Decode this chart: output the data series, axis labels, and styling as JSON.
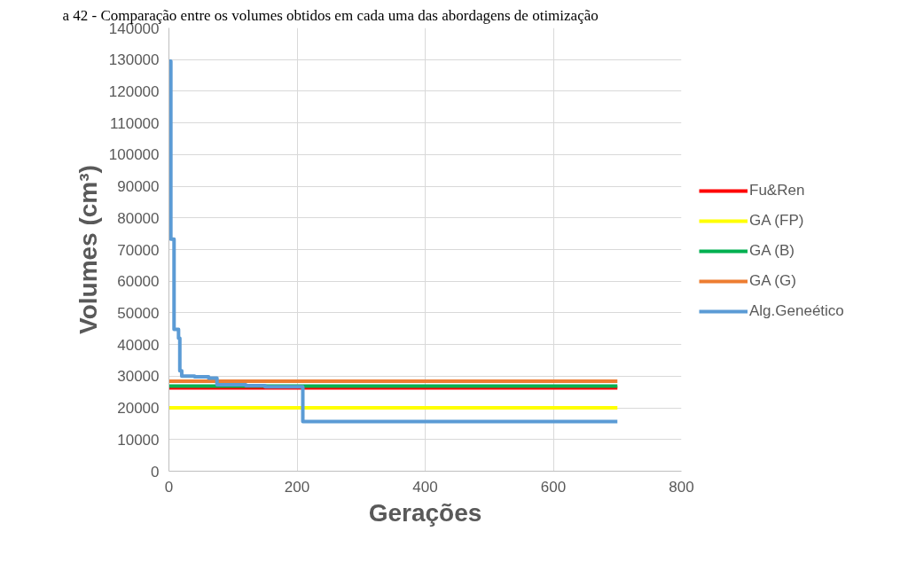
{
  "chart_data": {
    "type": "line",
    "annotations": [
      "a 42 - Comparação entre os volumes obtidos em cada uma das abordagens de otimização"
    ],
    "xlabel": "Gerações",
    "ylabel": "Volumes (cm³)",
    "xlim": [
      0,
      800
    ],
    "xticks": [
      0,
      200,
      400,
      600,
      800
    ],
    "ylim": [
      0,
      140000
    ],
    "yticks": [
      0,
      10000,
      20000,
      30000,
      40000,
      50000,
      60000,
      70000,
      80000,
      90000,
      100000,
      110000,
      120000,
      130000,
      140000
    ],
    "grid": true,
    "legend": "right",
    "marker": "none",
    "line_style": "solid",
    "series": [
      {
        "name": "Fu&Ren",
        "color": "#ff0000",
        "x": [
          0,
          700
        ],
        "values": [
          26300,
          26300
        ]
      },
      {
        "name": "GA (FP)",
        "color": "#ffff00",
        "x": [
          0,
          700
        ],
        "values": [
          20000,
          20000
        ]
      },
      {
        "name": "GA (B)",
        "color": "#00b050",
        "x": [
          0,
          700
        ],
        "values": [
          26900,
          26900
        ]
      },
      {
        "name": "GA (G)",
        "color": "#ed7d31",
        "x": [
          0,
          700
        ],
        "values": [
          28400,
          28400
        ]
      },
      {
        "name": "Alg.Geneético",
        "color": "#5b9bd5",
        "type": "step",
        "x": [
          0,
          3,
          8,
          15,
          17,
          20,
          40,
          62,
          75,
          120,
          150,
          209,
          700
        ],
        "values": [
          129500,
          73300,
          44800,
          42000,
          31700,
          30000,
          29800,
          29400,
          27300,
          27000,
          26700,
          15700,
          15700
        ]
      }
    ]
  }
}
